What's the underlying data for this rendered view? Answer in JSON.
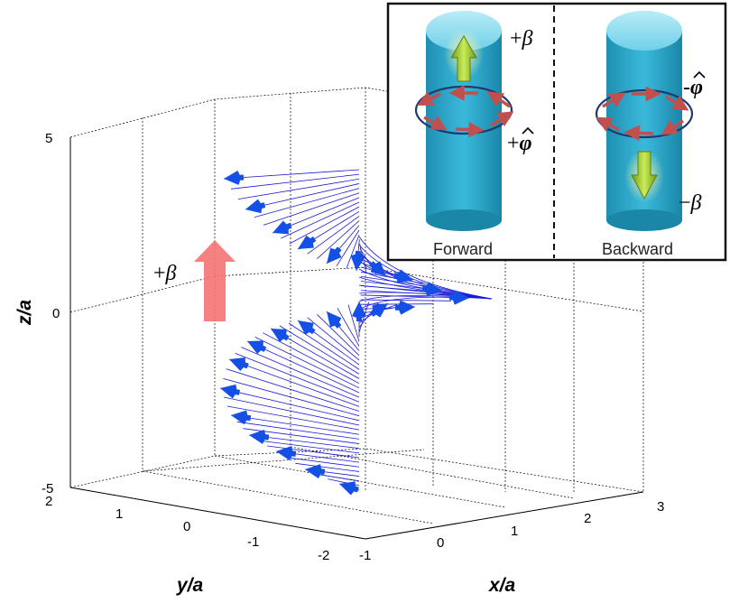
{
  "axes": {
    "z_label": "z/a",
    "y_label": "y/a",
    "x_label": "x/a",
    "z_ticks": [
      "5",
      "0",
      "-5"
    ],
    "y_ticks": [
      "2",
      "1",
      "0",
      "-1",
      "-2"
    ],
    "x_ticks": [
      "-1",
      "0",
      "1",
      "2",
      "3"
    ],
    "grid": true
  },
  "main_annotation": {
    "plus": "+",
    "symbol": "β"
  },
  "inset": {
    "left_caption": "Forward",
    "right_caption": "Backward",
    "labels": {
      "fwd_beta_sign": "+",
      "fwd_beta_sym": "β",
      "fwd_phi_sign": "+",
      "fwd_phi_sym": "φ",
      "bwd_phi_sign": "-",
      "bwd_phi_sym": "φ",
      "bwd_beta_sign": "−",
      "bwd_beta_sym": "β"
    }
  },
  "colors": {
    "field_line": "#1a1ad8",
    "field_arrow": "#1550e6",
    "beta_arrow": "#f47373",
    "cylinder": "#2aa6c9",
    "ring": "#1f3a6e",
    "ring_arrow": "#c0504d",
    "green_arrow": "#9ccc30"
  }
}
